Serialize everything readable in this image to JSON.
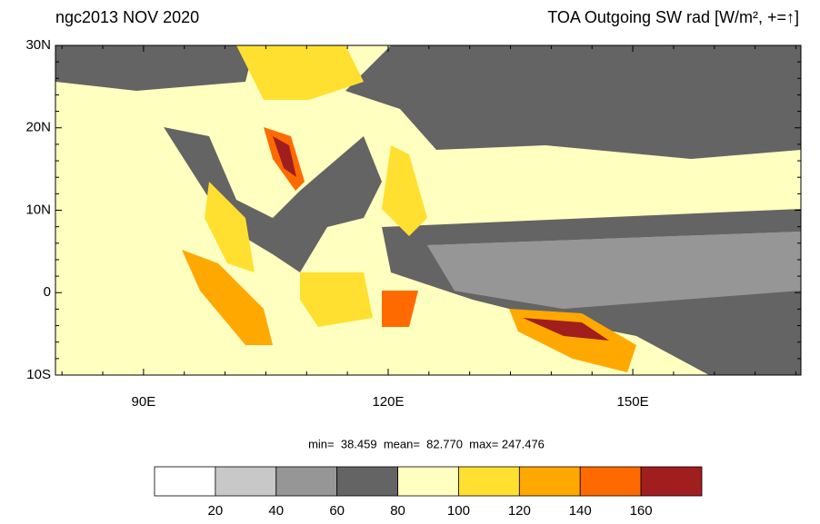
{
  "header": {
    "left": "ngc2013 NOV 2020",
    "right": "TOA Outgoing SW rad [W/m², +=↑]"
  },
  "map": {
    "lat_labels": [
      "30N",
      "20N",
      "10N",
      "0",
      "10S"
    ],
    "lon_labels": [
      "90E",
      "120E",
      "150E"
    ]
  },
  "stats": "min=  38.459  mean=  82.770  max= 247.476",
  "colorbar": {
    "colors": [
      "#ffffff",
      "#c8c8c8",
      "#969696",
      "#646464",
      "#ffffc0",
      "#ffe030",
      "#ffa800",
      "#ff6a00",
      "#a01e1e"
    ],
    "ticks": [
      20,
      40,
      60,
      80,
      100,
      120,
      140,
      160
    ]
  }
}
